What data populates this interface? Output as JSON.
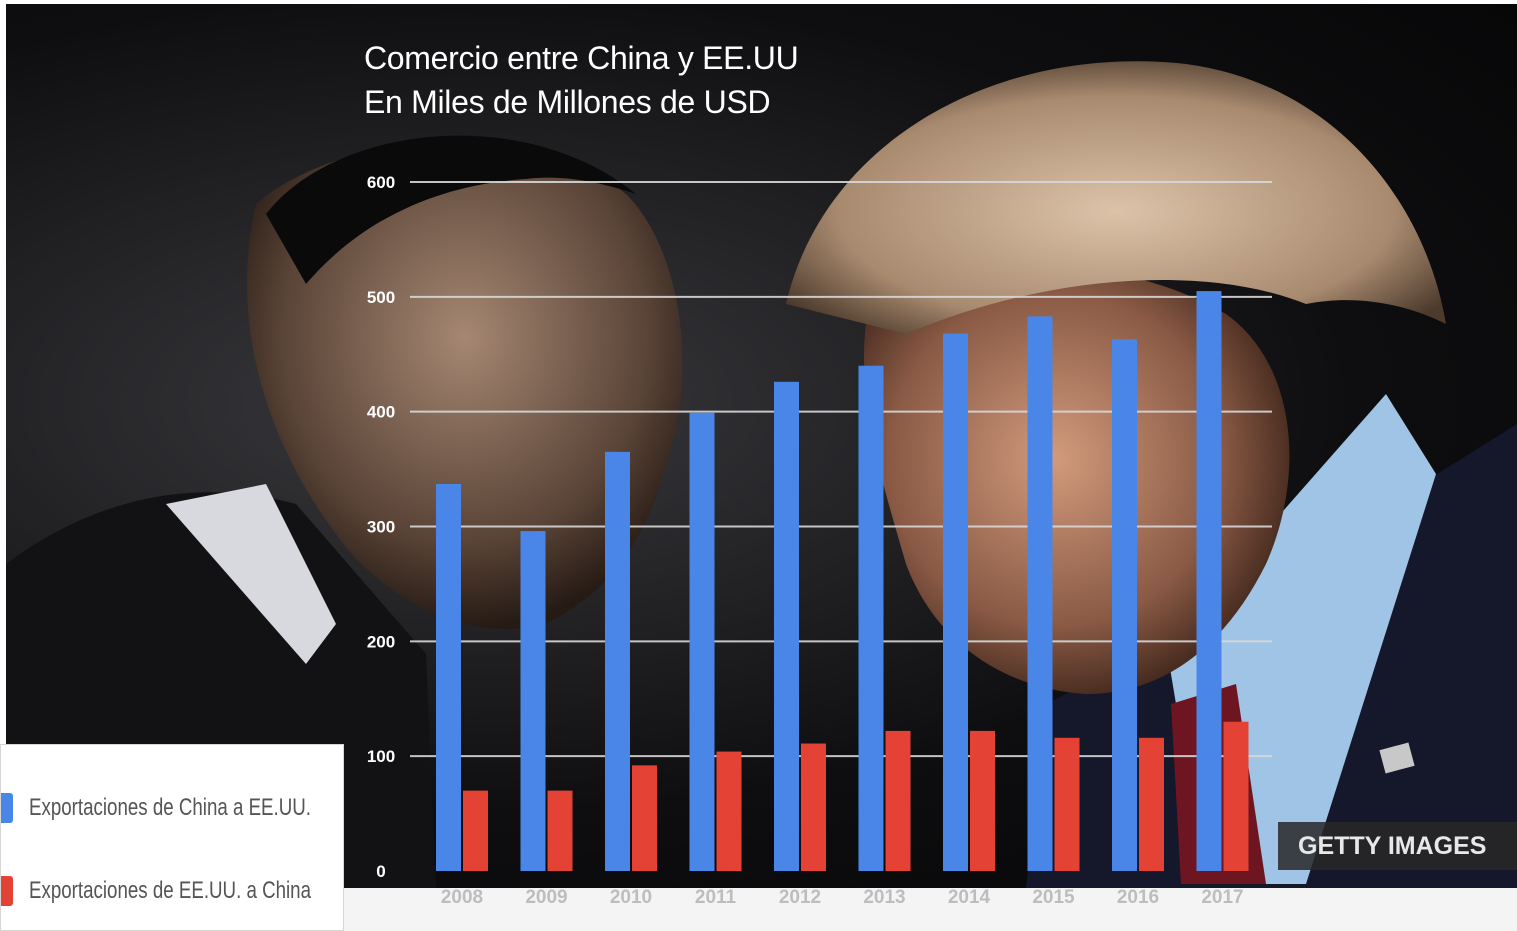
{
  "chart_data": {
    "type": "bar",
    "title": "Comercio entre China y EE.UU",
    "subtitle": "En Miles de Millones de USD",
    "categories": [
      "2008",
      "2009",
      "2010",
      "2011",
      "2012",
      "2013",
      "2014",
      "2015",
      "2016",
      "2017"
    ],
    "series": [
      {
        "name": "Exportaciones de China a EE.UU.",
        "color": "#4a86e8",
        "values": [
          337,
          296,
          365,
          399,
          426,
          440,
          468,
          483,
          463,
          505
        ]
      },
      {
        "name": "Exportaciones de EE.UU. a China",
        "color": "#e44234",
        "values": [
          70,
          70,
          92,
          104,
          111,
          122,
          122,
          116,
          116,
          130
        ]
      }
    ],
    "y_ticks": [
      "0",
      "100",
      "200",
      "300",
      "400",
      "500",
      "600"
    ],
    "ylim": [
      0,
      600
    ],
    "grid": true,
    "legend_position": "bottom-left"
  },
  "watermark": "GETTY IMAGES"
}
